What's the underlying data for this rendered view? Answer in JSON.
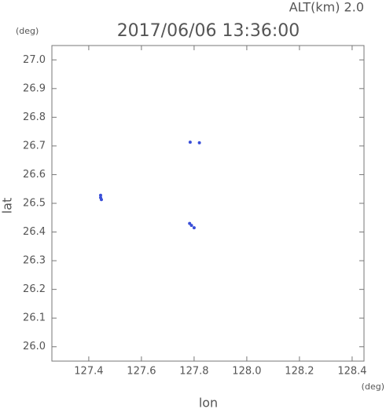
{
  "chart_data": {
    "type": "scatter",
    "title": "2017/06/06 13:36:00",
    "subtitle": "ALT(km) 2.0",
    "y_unit": "(deg)",
    "x_unit": "(deg)",
    "xlabel": "lon",
    "ylabel": "lat",
    "xlim": [
      127.26,
      128.445
    ],
    "ylim": [
      25.95,
      27.05
    ],
    "xticks": [
      127.4,
      127.6,
      127.8,
      {
        "value": 128.0,
        "label": "128.0"
      },
      128.2,
      128.4
    ],
    "yticks": [
      {
        "value": 26.0,
        "label": "26.0"
      },
      26.1,
      26.2,
      26.3,
      26.4,
      26.5,
      26.6,
      26.7,
      26.8,
      26.9,
      {
        "value": 27.0,
        "label": "27.0"
      }
    ],
    "color": "#3a4fd8",
    "x": [
      127.445,
      127.445,
      127.448,
      127.785,
      127.82,
      127.783,
      127.79,
      127.8
    ],
    "values": [
      26.528,
      26.52,
      26.513,
      26.713,
      26.711,
      26.43,
      26.423,
      26.415
    ]
  }
}
